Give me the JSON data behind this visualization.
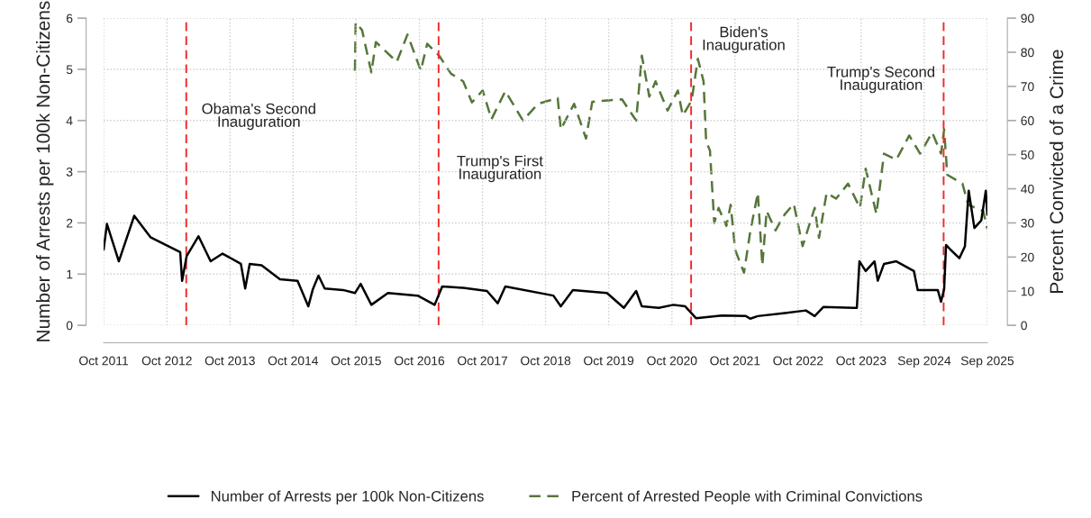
{
  "chart_data": {
    "type": "line",
    "ylabel": "Number of Arrests per 100k Non-Citizens",
    "y2label": "Percent Convicted of a Crime",
    "xlim": [
      "2011-10-01",
      "2025-09-30"
    ],
    "xticks": [
      {
        "value": "2011-10-01",
        "label": "Oct 2011"
      },
      {
        "value": "2012-10-01",
        "label": "Oct 2012"
      },
      {
        "value": "2013-10-01",
        "label": "Oct 2013"
      },
      {
        "value": "2014-10-01",
        "label": "Oct 2014"
      },
      {
        "value": "2015-10-01",
        "label": "Oct 2015"
      },
      {
        "value": "2016-10-01",
        "label": "Oct 2016"
      },
      {
        "value": "2017-10-01",
        "label": "Oct 2017"
      },
      {
        "value": "2018-10-01",
        "label": "Oct 2018"
      },
      {
        "value": "2019-10-01",
        "label": "Oct 2019"
      },
      {
        "value": "2020-10-01",
        "label": "Oct 2020"
      },
      {
        "value": "2021-10-01",
        "label": "Oct 2021"
      },
      {
        "value": "2022-10-01",
        "label": "Oct 2022"
      },
      {
        "value": "2023-10-01",
        "label": "Oct 2023"
      },
      {
        "value": "2024-09-30",
        "label": "Sep 2024"
      },
      {
        "value": "2025-09-30",
        "label": "Sep 2025"
      }
    ],
    "ylim": [
      0,
      6
    ],
    "yticks": [
      0,
      1,
      2,
      3,
      4,
      5,
      6
    ],
    "y2lim": [
      0,
      90
    ],
    "y2ticks": [
      0,
      10,
      20,
      30,
      40,
      50,
      60,
      70,
      80,
      90
    ],
    "grid": true,
    "legend": "bottom",
    "series": [
      {
        "name": "Number of Arrests per 100k Non-Citizens",
        "color": "#000000",
        "line_style": "solid",
        "x": [
          "2011-10-01",
          "2011-10-20",
          "2011-12-28",
          "2012-03-26",
          "2012-06-28",
          "2012-12-17",
          "2012-12-28",
          "2013-01-23",
          "2013-04-02",
          "2013-06-11",
          "2013-08-19",
          "2013-12-03",
          "2013-12-28",
          "2014-01-23",
          "2014-04-02",
          "2014-07-17",
          "2014-10-27",
          "2014-12-28",
          "2015-01-23",
          "2015-02-25",
          "2015-04-02",
          "2015-07-17",
          "2015-09-24",
          "2015-10-27",
          "2015-12-28",
          "2016-04-02",
          "2016-09-21",
          "2016-12-28",
          "2017-02-10",
          "2017-06-11",
          "2017-10-27",
          "2017-12-28",
          "2018-02-10",
          "2018-11-15",
          "2018-12-28",
          "2019-03-08",
          "2019-09-21",
          "2019-12-28",
          "2020-03-08",
          "2020-04-10",
          "2020-07-17",
          "2020-10-09",
          "2020-12-17",
          "2021-02-17",
          "2021-07-17",
          "2021-12-03",
          "2021-12-28",
          "2022-02-10",
          "2022-07-17",
          "2022-11-15",
          "2023-01-05",
          "2023-02-25",
          "2023-08-19",
          "2023-09-06",
          "2023-09-21",
          "2023-10-27",
          "2023-12-17",
          "2024-01-05",
          "2024-02-10",
          "2024-04-21",
          "2024-08-01",
          "2024-08-23",
          "2024-12-17",
          "2025-01-05",
          "2025-01-23",
          "2025-02-03",
          "2025-02-28",
          "2025-04-21",
          "2025-05-23",
          "2025-06-14",
          "2025-07-17",
          "2025-08-26",
          "2025-09-21",
          "2025-09-30"
        ],
        "values": [
          1.48,
          1.98,
          1.25,
          2.14,
          1.72,
          1.43,
          0.87,
          1.35,
          1.74,
          1.25,
          1.4,
          1.2,
          0.72,
          1.2,
          1.17,
          0.9,
          0.87,
          0.37,
          0.7,
          0.97,
          0.72,
          0.69,
          0.63,
          0.81,
          0.4,
          0.63,
          0.58,
          0.4,
          0.76,
          0.73,
          0.67,
          0.43,
          0.76,
          0.58,
          0.37,
          0.69,
          0.63,
          0.34,
          0.67,
          0.37,
          0.34,
          0.4,
          0.37,
          0.14,
          0.19,
          0.18,
          0.13,
          0.18,
          0.24,
          0.29,
          0.18,
          0.36,
          0.34,
          0.34,
          1.25,
          1.06,
          1.25,
          0.87,
          1.2,
          1.25,
          1.06,
          0.69,
          0.69,
          0.46,
          0.71,
          1.57,
          1.48,
          1.31,
          1.54,
          2.63,
          1.9,
          2.05,
          2.63,
          2.16
        ]
      },
      {
        "name": "Percent of Arrested People with Criminal Convictions",
        "color": "#56763a",
        "line_style": "dashed",
        "axis": "y2",
        "x": [
          "2015-09-24",
          "2015-09-28",
          "2015-11-04",
          "2015-12-28",
          "2016-01-23",
          "2016-05-23",
          "2016-07-24",
          "2016-10-09",
          "2016-11-15",
          "2017-01-23",
          "2017-04-02",
          "2017-06-11",
          "2017-08-01",
          "2017-10-02",
          "2017-11-22",
          "2018-02-10",
          "2018-05-23",
          "2018-08-19",
          "2018-12-10",
          "2018-12-28",
          "2019-03-15",
          "2019-05-23",
          "2019-06-28",
          "2019-12-17",
          "2020-03-08",
          "2020-04-10",
          "2020-05-23",
          "2020-06-28",
          "2020-09-06",
          "2020-11-04",
          "2020-12-03",
          "2021-01-23",
          "2021-02-28",
          "2021-04-02",
          "2021-04-17",
          "2021-05-09",
          "2021-06-03",
          "2021-06-28",
          "2021-08-12",
          "2021-09-06",
          "2021-10-02",
          "2021-11-22",
          "2021-12-28",
          "2022-02-10",
          "2022-03-08",
          "2022-04-02",
          "2022-05-23",
          "2022-07-17",
          "2022-09-06",
          "2022-10-27",
          "2023-01-05",
          "2023-01-30",
          "2023-03-15",
          "2023-05-09",
          "2023-07-17",
          "2023-09-24",
          "2023-10-27",
          "2023-12-28",
          "2024-02-10",
          "2024-04-21",
          "2024-07-05",
          "2024-09-06",
          "2024-11-15",
          "2025-01-05",
          "2025-01-23",
          "2025-02-10",
          "2025-05-09",
          "2025-06-11",
          "2025-09-06",
          "2025-09-30"
        ],
        "values": [
          74.6,
          88.7,
          86.5,
          74.1,
          83.0,
          77.2,
          85.2,
          74.6,
          82.5,
          79.0,
          73.7,
          71.5,
          65.3,
          68.8,
          60.4,
          68.6,
          60.0,
          64.9,
          66.6,
          57.4,
          64.9,
          54.7,
          65.5,
          66.2,
          60.0,
          79.0,
          67.0,
          71.5,
          62.9,
          68.8,
          61.5,
          65.8,
          78.1,
          71.5,
          53.8,
          51.2,
          30.0,
          34.4,
          29.1,
          35.3,
          22.1,
          15.4,
          27.4,
          38.8,
          17.6,
          33.5,
          27.8,
          32.6,
          35.6,
          23.2,
          34.4,
          25.6,
          38.8,
          37.1,
          41.5,
          34.4,
          45.9,
          32.6,
          50.3,
          48.5,
          55.6,
          50.3,
          56.5,
          50.3,
          57.4,
          44.1,
          41.5,
          35.3,
          33.5,
          28.2
        ]
      }
    ],
    "ref_lines": [
      {
        "axis": "x",
        "value": "2013-01-21",
        "label": "Obama's Second\nInauguration",
        "color": "#ee2b2b",
        "line_style": "dashed"
      },
      {
        "axis": "x",
        "value": "2017-01-20",
        "label": "Trump's First\nInauguration",
        "color": "#ee2b2b",
        "line_style": "dashed"
      },
      {
        "axis": "x",
        "value": "2021-01-20",
        "label": "Biden's\nInauguration",
        "color": "#ee2b2b",
        "line_style": "dashed"
      },
      {
        "axis": "x",
        "value": "2025-01-20",
        "label": "Trump's Second\nInauguration",
        "color": "#ee2b2b",
        "line_style": "dashed"
      }
    ]
  }
}
